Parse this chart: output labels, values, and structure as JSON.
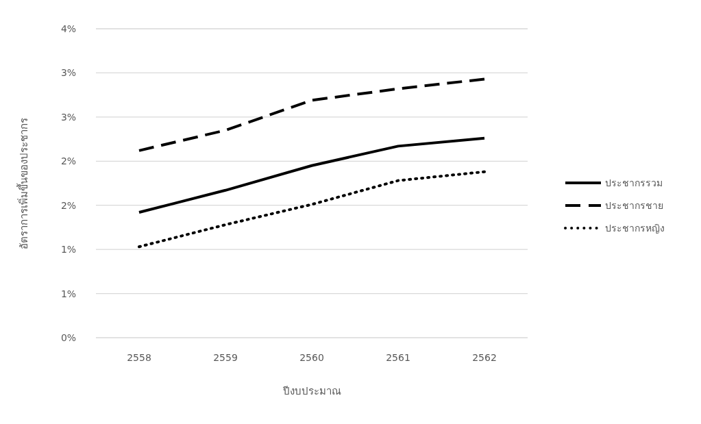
{
  "chart_data": {
    "type": "line",
    "xlabel": "ปีงบประมาณ",
    "ylabel": "อัตราการเพิ่มขึ้นของประชากร",
    "categories": [
      "2558",
      "2559",
      "2560",
      "2561",
      "2562"
    ],
    "series": [
      {
        "name": "ประชากรรวม",
        "color": "#000000",
        "line_style": "solid",
        "values": [
          1.42,
          1.67,
          1.95,
          2.17,
          2.26
        ]
      },
      {
        "name": "ประชากรชาย",
        "color": "#000000",
        "line_style": "dashed",
        "values": [
          2.12,
          2.35,
          2.69,
          2.82,
          2.93
        ]
      },
      {
        "name": "ประชากรหญิง",
        "color": "#000000",
        "line_style": "dotted",
        "values": [
          1.03,
          1.28,
          1.51,
          1.78,
          1.88
        ]
      }
    ],
    "ylim": [
      0,
      3.5
    ],
    "yticks": [
      {
        "value": 0,
        "label": "0%"
      },
      {
        "value": 0.5,
        "label": "1%"
      },
      {
        "value": 1,
        "label": "1%"
      },
      {
        "value": 1.5,
        "label": "2%"
      },
      {
        "value": 2,
        "label": "2%"
      },
      {
        "value": 2.5,
        "label": "3%"
      },
      {
        "value": 3,
        "label": "3%"
      },
      {
        "value": 3.5,
        "label": "4%"
      }
    ],
    "grid": "y",
    "legend": "right"
  }
}
